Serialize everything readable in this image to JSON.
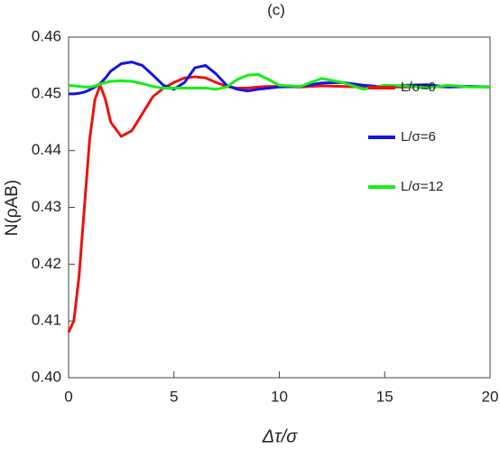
{
  "chart_data": {
    "type": "line",
    "title": "(c)",
    "xlabel": "Δτ/σ",
    "ylabel": "N(ρAB)",
    "x": [
      0,
      0.25,
      0.5,
      0.75,
      1,
      1.25,
      1.5,
      1.75,
      2,
      2.5,
      3,
      3.5,
      4,
      4.5,
      5,
      5.5,
      6,
      6.5,
      7,
      7.5,
      8,
      8.5,
      9,
      9.5,
      10,
      11,
      12,
      13,
      14,
      15,
      16,
      17,
      18,
      19,
      20
    ],
    "series": [
      {
        "name": "L/σ=0",
        "color": "#e8140f",
        "values": [
          0.408,
          0.41,
          0.418,
          0.43,
          0.442,
          0.449,
          0.4515,
          0.449,
          0.445,
          0.4425,
          0.4435,
          0.4465,
          0.4495,
          0.451,
          0.452,
          0.4528,
          0.453,
          0.4528,
          0.452,
          0.4513,
          0.451,
          0.451,
          0.4512,
          0.4513,
          0.4513,
          0.4512,
          0.4514,
          0.4513,
          0.4512,
          0.4512,
          0.4512,
          0.4513,
          0.4512,
          0.4513,
          0.4512
        ]
      },
      {
        "name": "L/σ=6",
        "color": "#1414e0",
        "values": [
          0.45,
          0.45,
          0.4501,
          0.4503,
          0.4507,
          0.4512,
          0.4518,
          0.4528,
          0.454,
          0.4553,
          0.4556,
          0.455,
          0.4533,
          0.4515,
          0.4508,
          0.452,
          0.4546,
          0.455,
          0.4535,
          0.4515,
          0.4508,
          0.4505,
          0.4508,
          0.451,
          0.4512,
          0.4513,
          0.4519,
          0.452,
          0.4515,
          0.4512,
          0.4515,
          0.4516,
          0.4512,
          0.4513,
          0.4512
        ]
      },
      {
        "name": "L/σ=12",
        "color": "#14f014",
        "values": [
          0.4515,
          0.4514,
          0.4513,
          0.4512,
          0.4512,
          0.4514,
          0.4517,
          0.452,
          0.4522,
          0.4523,
          0.4522,
          0.4518,
          0.4513,
          0.451,
          0.451,
          0.451,
          0.451,
          0.451,
          0.4508,
          0.4512,
          0.4525,
          0.4533,
          0.4534,
          0.4525,
          0.4515,
          0.4513,
          0.4527,
          0.452,
          0.4508,
          0.4515,
          0.4514,
          0.451,
          0.4515,
          0.4512,
          0.4512
        ]
      }
    ],
    "xlim": [
      0,
      20
    ],
    "xticks": [
      0,
      5,
      10,
      15,
      20
    ],
    "ylim": [
      0.4,
      0.46
    ],
    "yticks": [
      {
        "value": 0.4,
        "label": "0.40"
      },
      0.41,
      0.42,
      0.43,
      0.44,
      0.45,
      0.46
    ],
    "legend": "upper right",
    "grid": false
  }
}
